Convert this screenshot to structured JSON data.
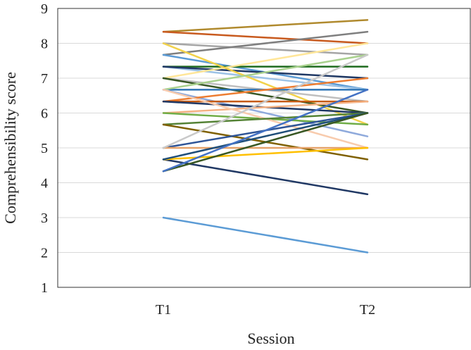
{
  "chart_data": {
    "type": "line",
    "xlabel": "Session",
    "ylabel": "Comprehensibility score",
    "categories": [
      "T1",
      "T2"
    ],
    "ylim": [
      1,
      9
    ],
    "yticks": [
      1,
      2,
      3,
      4,
      5,
      6,
      7,
      8,
      9
    ],
    "grid": "horizontal",
    "legend": "none",
    "series": [
      {
        "values": [
          8.33,
          8.67
        ],
        "color": "#b08a2e"
      },
      {
        "values": [
          8.33,
          8.0
        ],
        "color": "#c85a1e"
      },
      {
        "values": [
          8.0,
          7.67
        ],
        "color": "#a5a5a5"
      },
      {
        "values": [
          7.67,
          8.33
        ],
        "color": "#7f7f7f"
      },
      {
        "values": [
          7.67,
          6.67
        ],
        "color": "#5b9bd5"
      },
      {
        "values": [
          7.33,
          7.33
        ],
        "color": "#1e6b1e"
      },
      {
        "values": [
          7.33,
          6.67
        ],
        "color": "#9dc3e6"
      },
      {
        "values": [
          7.33,
          7.0
        ],
        "color": "#1f3864"
      },
      {
        "values": [
          7.0,
          8.0
        ],
        "color": "#ffe699"
      },
      {
        "values": [
          8.0,
          5.67
        ],
        "color": "#f2d24b"
      },
      {
        "values": [
          7.0,
          6.33
        ],
        "color": "#bfbfbf"
      },
      {
        "values": [
          7.0,
          6.0
        ],
        "color": "#375623"
      },
      {
        "values": [
          6.67,
          6.67
        ],
        "color": "#2e75b6"
      },
      {
        "values": [
          6.67,
          7.67
        ],
        "color": "#a9d18e"
      },
      {
        "values": [
          6.67,
          5.33
        ],
        "color": "#8faadc"
      },
      {
        "values": [
          6.33,
          7.0
        ],
        "color": "#ed7d31"
      },
      {
        "values": [
          6.33,
          6.33
        ],
        "color": "#c55a11"
      },
      {
        "values": [
          6.33,
          6.0
        ],
        "color": "#203864"
      },
      {
        "values": [
          6.0,
          6.33
        ],
        "color": "#f4b183"
      },
      {
        "values": [
          6.0,
          5.67
        ],
        "color": "#70ad47"
      },
      {
        "values": [
          6.67,
          5.0
        ],
        "color": "#f8cbad"
      },
      {
        "values": [
          5.67,
          6.0
        ],
        "color": "#548235"
      },
      {
        "values": [
          5.67,
          4.67
        ],
        "color": "#7f6000"
      },
      {
        "values": [
          5.0,
          6.0
        ],
        "color": "#2f5597"
      },
      {
        "values": [
          5.0,
          5.0
        ],
        "color": "#e5a26a"
      },
      {
        "values": [
          5.0,
          7.67
        ],
        "color": "#c9c9c9"
      },
      {
        "values": [
          4.67,
          3.67
        ],
        "color": "#203864"
      },
      {
        "values": [
          4.67,
          5.0
        ],
        "color": "#ffc000"
      },
      {
        "values": [
          4.67,
          6.0
        ],
        "color": "#1f4e79"
      },
      {
        "values": [
          4.33,
          6.0
        ],
        "color": "#385723"
      },
      {
        "values": [
          4.33,
          6.67
        ],
        "color": "#4472c4"
      },
      {
        "values": [
          3.0,
          2.0
        ],
        "color": "#5b9bd5"
      }
    ]
  }
}
